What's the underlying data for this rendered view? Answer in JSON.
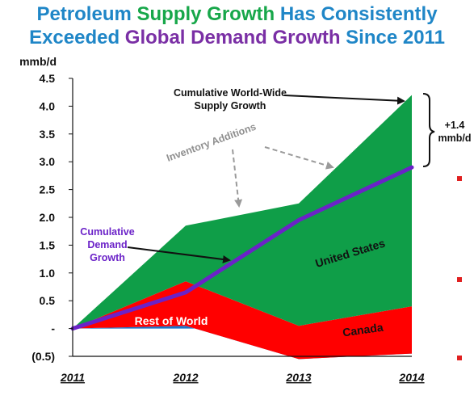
{
  "header": {
    "line1": [
      {
        "text": "Petroleum ",
        "color": "#1f86c7"
      },
      {
        "text": "Supply Growth",
        "color": "#17a74a"
      },
      {
        "text": " Has Consistently",
        "color": "#1f86c7"
      }
    ],
    "line2": [
      {
        "text": "Exceeded ",
        "color": "#1f86c7"
      },
      {
        "text": "Global Demand Growth",
        "color": "#7a2fa5"
      },
      {
        "text": " Since 2011",
        "color": "#1f86c7"
      }
    ]
  },
  "chart_data": {
    "type": "area",
    "ylabel": "mmb/d",
    "ylim": [
      -0.5,
      4.5
    ],
    "y_ticks": [
      {
        "value": 4.5,
        "label": "4.5"
      },
      {
        "value": 4.0,
        "label": "4.0"
      },
      {
        "value": 3.5,
        "label": "3.5"
      },
      {
        "value": 3.0,
        "label": "3.0"
      },
      {
        "value": 2.5,
        "label": "2.5"
      },
      {
        "value": 2.0,
        "label": "2.0"
      },
      {
        "value": 1.5,
        "label": "1.5"
      },
      {
        "value": 1.0,
        "label": "1.0"
      },
      {
        "value": 0.5,
        "label": "0.5"
      },
      {
        "value": 0,
        "label": "-"
      },
      {
        "value": -0.5,
        "label": "(0.5)"
      }
    ],
    "x": [
      "2011",
      "2012",
      "2013",
      "2014"
    ],
    "grid": false,
    "series": [
      {
        "name": "Rest of World",
        "color": "#1b75c9",
        "values": [
          0,
          0.05,
          -0.55,
          -0.45
        ]
      },
      {
        "name": "Canada",
        "color": "#ff0000",
        "values": [
          0,
          0.8,
          0.6,
          0.85
        ]
      },
      {
        "name": "United States",
        "color": "#0f9e48",
        "values": [
          0,
          1.0,
          2.2,
          3.8
        ]
      }
    ],
    "cumulative_supply": [
      0,
      1.85,
      2.25,
      4.2
    ],
    "cumulative_demand": {
      "name": "Cumulative Demand Growth",
      "color": "#6b22c8",
      "values": [
        0,
        0.65,
        1.95,
        2.9
      ]
    },
    "annotations": {
      "supply": [
        "Cumulative World-Wide",
        "Supply Growth"
      ],
      "inventory": "Inventory Additions",
      "demand": [
        "Cumulative",
        "Demand",
        "Growth"
      ],
      "bracket": [
        "+1.4",
        "mmb/d"
      ]
    },
    "region_labels": {
      "us": "United States",
      "canada": "Canada",
      "row": "Rest of World"
    }
  }
}
